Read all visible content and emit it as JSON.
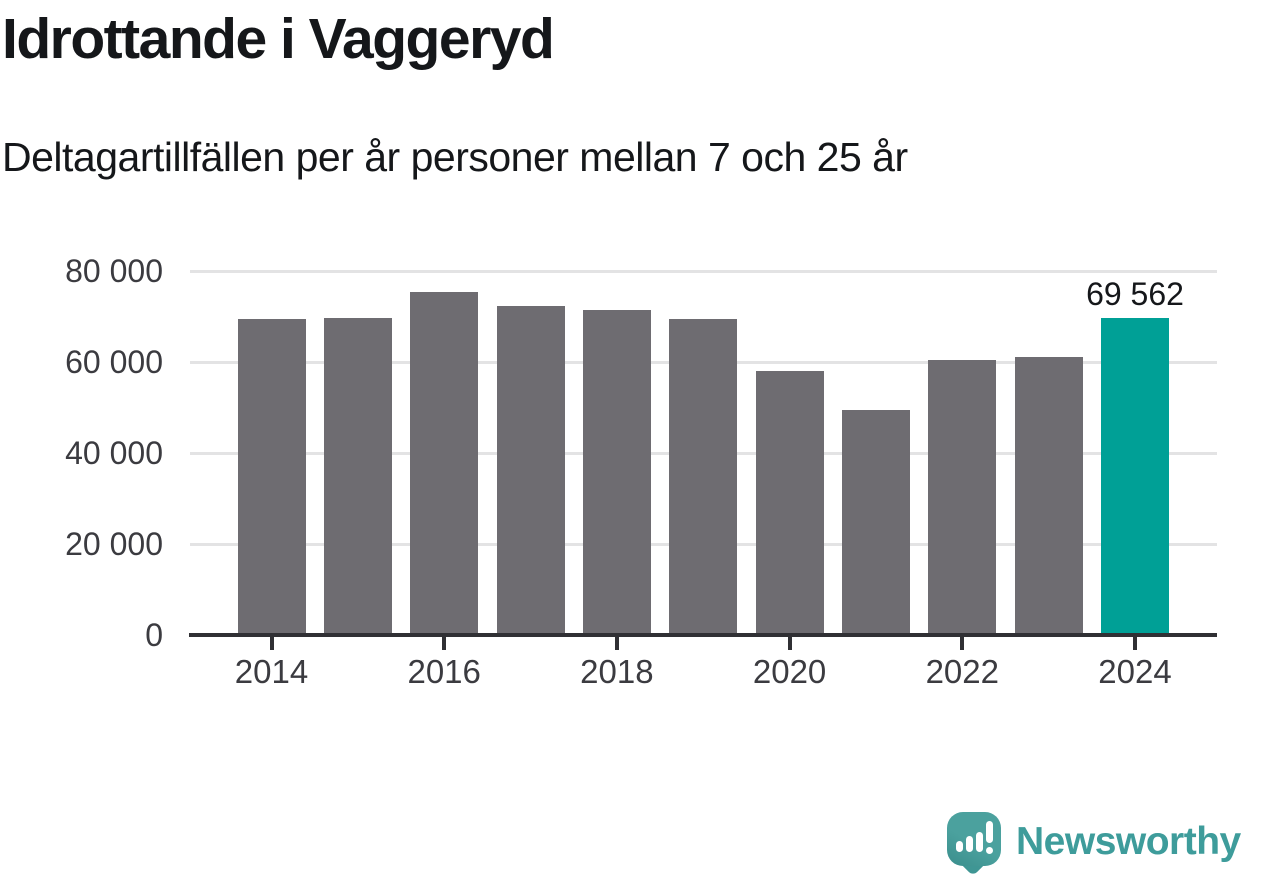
{
  "chart_data": {
    "type": "bar",
    "title": "Idrottande i Vaggeryd",
    "subtitle": "Deltagartillfällen per år personer mellan 7 och 25 år",
    "categories": [
      "2014",
      "2015",
      "2016",
      "2017",
      "2018",
      "2019",
      "2020",
      "2021",
      "2022",
      "2023",
      "2024"
    ],
    "values": [
      69500,
      69700,
      75400,
      72300,
      71400,
      69500,
      58000,
      49500,
      60400,
      61200,
      69562
    ],
    "highlight_index": 10,
    "highlight_value_label": "69 562",
    "ylim": [
      0,
      80000
    ],
    "yticks": [
      0,
      20000,
      40000,
      60000,
      80000
    ],
    "ytick_labels": [
      "0",
      "20 000",
      "40 000",
      "60 000",
      "80 000"
    ],
    "xtick_years": [
      "2014",
      "2016",
      "2018",
      "2020",
      "2022",
      "2024"
    ],
    "grid": "horizontal",
    "legend": "none",
    "colors": {
      "bar": "#6e6c71",
      "highlight": "#00a096",
      "axis": "#303034",
      "gridline": "#e3e3e4",
      "tick_text": "#3b3b40",
      "title_text": "#15171a",
      "value_label_text": "#15171a"
    }
  },
  "footer": {
    "brand": "Newsworthy",
    "brand_color": "#3e9c9b",
    "logo": "newsworthy-speech-bubble-bar-chart-icon"
  }
}
